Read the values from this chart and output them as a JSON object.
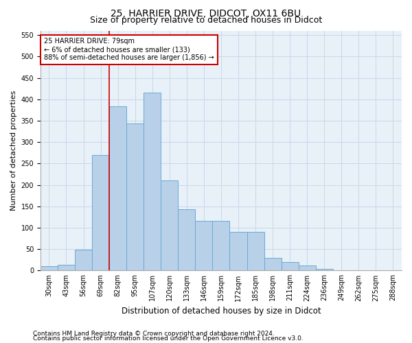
{
  "title": "25, HARRIER DRIVE, DIDCOT, OX11 6BU",
  "subtitle": "Size of property relative to detached houses in Didcot",
  "xlabel": "Distribution of detached houses by size in Didcot",
  "ylabel": "Number of detached properties",
  "footnote1": "Contains HM Land Registry data © Crown copyright and database right 2024.",
  "footnote2": "Contains public sector information licensed under the Open Government Licence v3.0.",
  "categories": [
    "30sqm",
    "43sqm",
    "56sqm",
    "69sqm",
    "82sqm",
    "95sqm",
    "107sqm",
    "120sqm",
    "133sqm",
    "146sqm",
    "159sqm",
    "172sqm",
    "185sqm",
    "198sqm",
    "211sqm",
    "224sqm",
    "236sqm",
    "249sqm",
    "262sqm",
    "275sqm",
    "288sqm"
  ],
  "values": [
    10,
    13,
    48,
    270,
    383,
    343,
    415,
    210,
    143,
    116,
    116,
    90,
    90,
    30,
    20,
    11,
    3,
    1,
    1,
    0,
    0
  ],
  "bar_color": "#b8d0e8",
  "bar_edge_color": "#6aaad4",
  "grid_color": "#c8d8ea",
  "background_color": "#e8f0f8",
  "vline_x_idx": 3.5,
  "vline_color": "#cc0000",
  "annotation_text": "25 HARRIER DRIVE: 79sqm\n← 6% of detached houses are smaller (133)\n88% of semi-detached houses are larger (1,856) →",
  "annotation_box_facecolor": "#ffffff",
  "annotation_box_edgecolor": "#cc0000",
  "ylim": [
    0,
    560
  ],
  "yticks": [
    0,
    50,
    100,
    150,
    200,
    250,
    300,
    350,
    400,
    450,
    500,
    550
  ],
  "title_fontsize": 10,
  "subtitle_fontsize": 9,
  "ylabel_fontsize": 8,
  "xlabel_fontsize": 8.5,
  "tick_fontsize": 7,
  "footnote_fontsize": 6.5
}
